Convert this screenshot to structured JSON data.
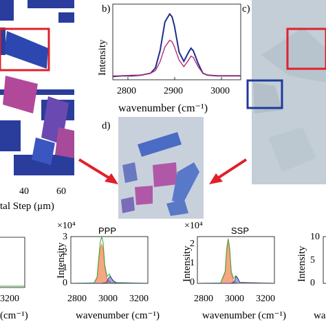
{
  "panels": {
    "a": {
      "x_ticks": [
        "40",
        "60"
      ],
      "x_label": "tal Step (μm)"
    },
    "b": {
      "letter": "b)",
      "ylabel": "Intensity",
      "xlabel": "wavenumber (cm⁻¹)",
      "x_ticks": [
        "2800",
        "2900",
        "3000"
      ]
    },
    "c": {
      "letter": "c)"
    },
    "d": {
      "letter": "d)"
    },
    "e": {
      "x_ticks": [
        "3200"
      ],
      "x_label": "(cm⁻¹)"
    },
    "f": {
      "title": "PPP",
      "exponent": "×10⁴",
      "ylabel": "Intensity",
      "xlabel": "wavenumber (cm⁻¹)",
      "y_ticks": [
        "3",
        "2",
        "1",
        "0"
      ],
      "x_ticks": [
        "2800",
        "3000",
        "3200"
      ]
    },
    "g": {
      "title": "SSP",
      "exponent": "×10⁴",
      "ylabel": "Intensity",
      "xlabel": "wavenumber (cm⁻¹)",
      "y_ticks": [
        "2",
        "1",
        "0"
      ],
      "x_ticks": [
        "2800",
        "3000",
        "3200"
      ]
    },
    "h": {
      "y_ticks": [
        "10",
        "5",
        "0"
      ],
      "xlabel": "wa"
    }
  },
  "colors": {
    "blue_series": "#1f2d8a",
    "magenta_series": "#b0307a",
    "red_box": "#e0202a",
    "blue_box": "#1f3a9a",
    "fit_orange": "#f08a5a",
    "fit_green": "#3aa83a"
  },
  "chart_data": [
    {
      "panel": "b",
      "type": "line",
      "xlabel": "wavenumber (cm-1)",
      "ylabel": "Intensity",
      "xlim": [
        2780,
        3050
      ],
      "series": [
        {
          "x": [
            2780,
            2800,
            2820,
            2840,
            2860,
            2870,
            2880,
            2890,
            2900,
            2905,
            2910,
            2920,
            2930,
            2940,
            2945,
            2950,
            2960,
            2970,
            2980,
            3000,
            3020,
            3050
          ],
          "values": [
            0.05,
            0.06,
            0.06,
            0.07,
            0.1,
            0.18,
            0.45,
            0.88,
            1.0,
            0.96,
            0.82,
            0.42,
            0.28,
            0.42,
            0.48,
            0.44,
            0.25,
            0.1,
            0.07,
            0.06,
            0.06,
            0.06
          ]
        },
        {
          "x": [
            2780,
            2800,
            2820,
            2840,
            2860,
            2870,
            2880,
            2890,
            2900,
            2905,
            2910,
            2920,
            2930,
            2940,
            2945,
            2950,
            2960,
            2970,
            2980,
            3000,
            3020,
            3050
          ],
          "values": [
            0.06,
            0.06,
            0.07,
            0.07,
            0.1,
            0.14,
            0.28,
            0.5,
            0.6,
            0.58,
            0.5,
            0.3,
            0.2,
            0.3,
            0.36,
            0.34,
            0.2,
            0.1,
            0.07,
            0.06,
            0.06,
            0.06
          ]
        }
      ]
    },
    {
      "panel": "f",
      "type": "area",
      "title": "PPP",
      "xlabel": "wavenumber (cm-1)",
      "ylabel": "Intensity",
      "xlim": [
        2700,
        3200
      ],
      "ylim": [
        0,
        3
      ],
      "series": [
        {
          "x": [
            2700,
            2850,
            2870,
            2880,
            2890,
            2900,
            2910,
            2920,
            2935,
            2960,
            3000,
            3200
          ],
          "values": [
            0,
            0.02,
            0.3,
            1.2,
            2.2,
            2.5,
            2.2,
            1.0,
            0.3,
            0.05,
            0.02,
            0
          ]
        },
        {
          "x": [
            2700,
            2850,
            2870,
            2880,
            2890,
            2900,
            2910,
            2920,
            2935,
            2950,
            2960,
            2975,
            3000,
            3200
          ],
          "values": [
            0,
            0.03,
            0.4,
            1.5,
            2.6,
            3.0,
            2.6,
            1.2,
            0.45,
            0.6,
            0.4,
            0.15,
            0.05,
            0
          ]
        },
        {
          "x": [
            2700,
            2900,
            2930,
            2945,
            2955,
            2965,
            2990,
            3200
          ],
          "values": [
            0,
            0,
            0.05,
            0.35,
            0.45,
            0.3,
            0.02,
            0
          ]
        }
      ]
    },
    {
      "panel": "g",
      "type": "area",
      "title": "SSP",
      "xlabel": "wavenumber (cm-1)",
      "ylabel": "Intensity",
      "xlim": [
        2700,
        3200
      ],
      "ylim": [
        0,
        2.4
      ],
      "series": [
        {
          "x": [
            2700,
            2850,
            2880,
            2890,
            2900,
            2910,
            2920,
            2935,
            2960,
            3200
          ],
          "values": [
            0,
            0.01,
            0.5,
            1.6,
            2.2,
            1.6,
            0.5,
            0.1,
            0.01,
            0
          ]
        },
        {
          "x": [
            2700,
            2850,
            2880,
            2890,
            2900,
            2910,
            2920,
            2935,
            2950,
            2960,
            2975,
            3200
          ],
          "values": [
            0,
            0.02,
            0.6,
            1.8,
            2.3,
            1.8,
            0.6,
            0.25,
            0.4,
            0.3,
            0.05,
            0
          ]
        },
        {
          "x": [
            2700,
            2920,
            2940,
            2950,
            2960,
            2975,
            3200
          ],
          "values": [
            0,
            0,
            0.1,
            0.35,
            0.3,
            0.05,
            0
          ]
        }
      ]
    }
  ]
}
